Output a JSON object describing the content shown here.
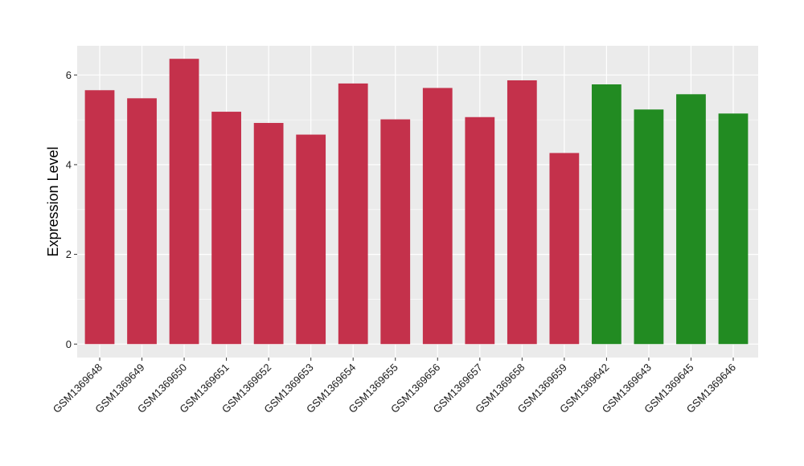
{
  "chart_data": {
    "type": "bar",
    "ylabel": "Expression Level",
    "xlabel": "",
    "ylim": [
      -0.3,
      6.65
    ],
    "yticks": [
      0,
      2,
      4,
      6
    ],
    "grid": true,
    "colors": {
      "group_a": "#C4314B",
      "group_b": "#228B22",
      "panel": "#EBEBEB",
      "gridline": "#FFFFFF"
    },
    "categories": [
      "GSM1369648",
      "GSM1369649",
      "GSM1369650",
      "GSM1369651",
      "GSM1369652",
      "GSM1369653",
      "GSM1369654",
      "GSM1369655",
      "GSM1369656",
      "GSM1369657",
      "GSM1369658",
      "GSM1369659",
      "GSM1369642",
      "GSM1369643",
      "GSM1369645",
      "GSM1369646"
    ],
    "values": [
      5.66,
      5.48,
      6.36,
      5.18,
      4.93,
      4.67,
      5.81,
      5.01,
      5.71,
      5.06,
      5.88,
      4.26,
      5.79,
      5.23,
      5.57,
      5.14
    ],
    "bar_groups": [
      "a",
      "a",
      "a",
      "a",
      "a",
      "a",
      "a",
      "a",
      "a",
      "a",
      "a",
      "a",
      "b",
      "b",
      "b",
      "b"
    ]
  }
}
